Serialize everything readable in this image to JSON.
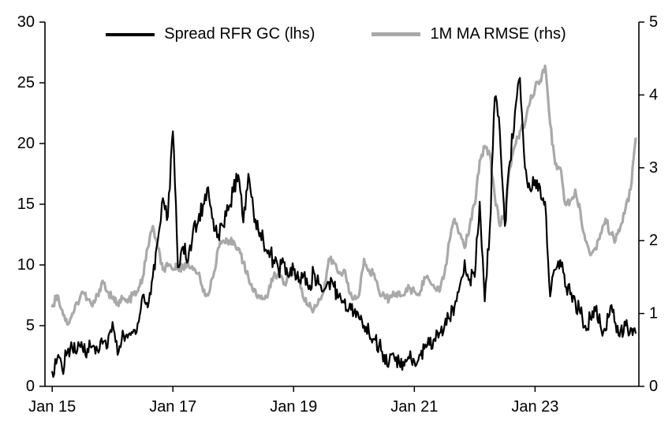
{
  "chart_data": {
    "type": "line",
    "title": "",
    "legend_position": "top-center",
    "grid": false,
    "x_axis": {
      "range": [
        2014.88,
        2024.72
      ],
      "ticks": [
        2015,
        2017,
        2019,
        2021,
        2023
      ],
      "tick_labels": [
        "Jan 15",
        "Jan 17",
        "Jan 19",
        "Jan 21",
        "Jan 23"
      ]
    },
    "left_axis": {
      "range": [
        0,
        30
      ],
      "ticks": [
        0,
        5,
        10,
        15,
        20,
        25,
        30
      ],
      "tick_labels": [
        "0",
        "5",
        "10",
        "15",
        "20",
        "25",
        "30"
      ]
    },
    "right_axis": {
      "range": [
        0,
        5
      ],
      "ticks": [
        0,
        1,
        2,
        3,
        4,
        5
      ],
      "tick_labels": [
        "0",
        "1",
        "2",
        "3",
        "4",
        "5"
      ]
    },
    "series": [
      {
        "name": "Spread RFR GC (lhs)",
        "axis": "left",
        "color": "#000000",
        "width": 2.2,
        "z": 2,
        "noise": 0.75,
        "clamp_min": 0.3,
        "x_start": 2015.0,
        "x_step": 0.0833333,
        "values": [
          1.2,
          2.3,
          1.4,
          2.8,
          3.1,
          3.0,
          3.2,
          3.1,
          3.3,
          3.0,
          3.5,
          3.2,
          5.3,
          2.6,
          4.6,
          4.0,
          4.4,
          5.2,
          7.5,
          6.5,
          9.0,
          12.0,
          15.5,
          14.0,
          21.0,
          9.8,
          11.5,
          10.3,
          12.8,
          13.5,
          15.0,
          16.4,
          13.8,
          12.5,
          13.2,
          14.5,
          16.0,
          17.4,
          13.5,
          17.5,
          14.5,
          12.8,
          12.0,
          11.2,
          10.4,
          9.6,
          10.2,
          9.0,
          9.6,
          8.6,
          9.2,
          8.0,
          9.4,
          8.4,
          7.9,
          8.6,
          8.2,
          7.4,
          6.9,
          6.4,
          6.1,
          5.6,
          5.0,
          4.4,
          3.9,
          3.4,
          2.6,
          2.0,
          2.4,
          1.9,
          1.7,
          2.3,
          2.1,
          2.6,
          3.1,
          3.4,
          3.9,
          4.4,
          5.0,
          5.6,
          6.6,
          8.2,
          10.4,
          8.8,
          9.0,
          15.2,
          7.0,
          13.0,
          23.8,
          21.0,
          13.2,
          18.5,
          22.6,
          25.4,
          18.0,
          16.2,
          17.0,
          16.4,
          15.2,
          7.4,
          9.6,
          10.4,
          8.2,
          7.6,
          7.0,
          6.0,
          5.0,
          5.6,
          6.2,
          5.0,
          4.6,
          6.6,
          5.2,
          4.6,
          5.0,
          4.8,
          4.4
        ]
      },
      {
        "name": "1M MA RMSE (rhs)",
        "axis": "right",
        "color": "#a9a9a9",
        "width": 3.2,
        "z": 1,
        "noise": 0.06,
        "clamp_min": 0.05,
        "x_start": 2015.0,
        "x_step": 0.0833333,
        "values": [
          1.1,
          1.25,
          1.05,
          0.85,
          1.0,
          1.15,
          1.3,
          1.2,
          1.1,
          1.25,
          1.45,
          1.3,
          1.2,
          1.15,
          1.2,
          1.15,
          1.25,
          1.3,
          1.5,
          1.9,
          2.2,
          1.9,
          1.6,
          1.65,
          1.6,
          1.65,
          1.62,
          1.7,
          1.6,
          1.55,
          1.3,
          1.25,
          1.5,
          1.9,
          2.0,
          1.95,
          2.0,
          1.9,
          1.7,
          1.5,
          1.3,
          1.25,
          1.2,
          1.3,
          1.5,
          1.55,
          1.4,
          1.5,
          1.6,
          1.5,
          1.2,
          1.1,
          1.05,
          1.2,
          1.3,
          1.75,
          1.7,
          1.55,
          1.6,
          1.3,
          1.2,
          1.25,
          1.75,
          1.6,
          1.55,
          1.3,
          1.25,
          1.2,
          1.25,
          1.3,
          1.25,
          1.35,
          1.3,
          1.25,
          1.5,
          1.45,
          1.35,
          1.3,
          1.55,
          2.0,
          2.3,
          2.1,
          1.9,
          2.2,
          2.5,
          3.1,
          3.3,
          3.2,
          2.6,
          2.2,
          2.4,
          3.0,
          3.3,
          3.5,
          3.6,
          3.9,
          4.1,
          4.2,
          4.4,
          3.6,
          3.05,
          3.0,
          2.5,
          2.55,
          2.7,
          2.4,
          2.0,
          1.8,
          1.9,
          2.1,
          2.3,
          2.1,
          2.0,
          2.2,
          2.45,
          2.7,
          3.4
        ]
      }
    ],
    "style": {
      "background": "#ffffff",
      "axis_color": "#000000"
    }
  }
}
